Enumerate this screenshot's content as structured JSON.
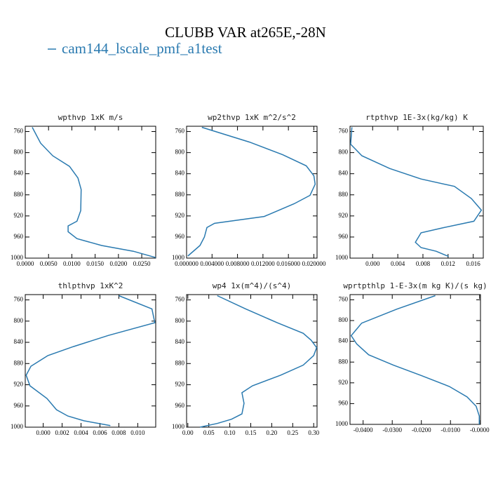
{
  "figure": {
    "title": "CLUBB VAR at265E,-28N",
    "series_name": "cam144_lscale_pmf_a1test",
    "color": "#2a7ab0"
  },
  "chart_data": [
    {
      "type": "line",
      "title": "wpthvp  1xK m/s",
      "levels": [
        752,
        782,
        806,
        826,
        848,
        870,
        910,
        930,
        939,
        950,
        963,
        976,
        987,
        999
      ],
      "values": [
        0.0015,
        0.0033,
        0.0059,
        0.0095,
        0.0113,
        0.012,
        0.0119,
        0.0111,
        0.0092,
        0.0092,
        0.0111,
        0.0164,
        0.0232,
        0.028
      ],
      "xlim": [
        0,
        0.028
      ],
      "ylim": [
        1000,
        750
      ],
      "xticks": [
        {
          "value": 0,
          "label": "0.0000"
        },
        {
          "value": 0.005,
          "label": "0.0050"
        },
        {
          "value": 0.01,
          "label": "0.0100"
        },
        {
          "value": 0.015,
          "label": "0.0150"
        },
        {
          "value": 0.02,
          "label": "0.0200"
        },
        {
          "value": 0.025,
          "label": "0.0250"
        }
      ],
      "yticks": [
        760,
        800,
        840,
        880,
        920,
        960,
        1000
      ]
    },
    {
      "type": "line",
      "title": "wp2thvp  1xK m^2/s^2",
      "levels": [
        752,
        780,
        804,
        825,
        844,
        860,
        881,
        897,
        921,
        934,
        942,
        960,
        976,
        996
      ],
      "values": [
        0.0024,
        0.0099,
        0.0151,
        0.0188,
        0.02,
        0.0202,
        0.0194,
        0.0169,
        0.0122,
        0.0044,
        0.0032,
        0.0028,
        0.0021,
        0.0002
      ],
      "xlim": [
        0,
        0.0205
      ],
      "ylim": [
        1000,
        750
      ],
      "xticks": [
        {
          "value": 0,
          "label": "0.000000"
        },
        {
          "value": 0.004,
          "label": "0.004000"
        },
        {
          "value": 0.008,
          "label": "0.008000"
        },
        {
          "value": 0.012,
          "label": "0.012000"
        },
        {
          "value": 0.016,
          "label": "0.016000"
        },
        {
          "value": 0.02,
          "label": "0.020000"
        }
      ],
      "yticks": [
        760,
        800,
        840,
        880,
        920,
        960,
        1000
      ]
    },
    {
      "type": "line",
      "title": "rtpthvp  1E-3x(kg/kg) K",
      "levels": [
        752,
        784,
        806,
        830,
        850,
        864,
        887,
        909,
        930,
        943,
        952,
        970,
        980,
        987,
        997
      ],
      "values": [
        -0.0033,
        -0.0035,
        -0.0017,
        0.0027,
        0.0077,
        0.013,
        0.0157,
        0.0173,
        0.0161,
        0.011,
        0.0077,
        0.0068,
        0.0077,
        0.0101,
        0.0121
      ],
      "xlim": [
        -0.0036,
        0.0176
      ],
      "ylim": [
        1000,
        750
      ],
      "xticks": [
        {
          "value": 0,
          "label": "0.000"
        },
        {
          "value": 0.004,
          "label": "0.004"
        },
        {
          "value": 0.008,
          "label": "0.008"
        },
        {
          "value": 0.012,
          "label": "0.012"
        },
        {
          "value": 0.016,
          "label": "0.016"
        }
      ],
      "yticks": [
        760,
        800,
        840,
        880,
        920,
        960,
        1000
      ]
    },
    {
      "type": "line",
      "title": "thlpthvp  1xK^2",
      "levels": [
        752,
        777,
        803,
        827,
        848,
        865,
        885,
        902,
        922,
        946,
        967,
        979,
        988,
        997
      ],
      "values": [
        0.008,
        0.0115,
        0.0118,
        0.0069,
        0.0032,
        0.0005,
        -0.0013,
        -0.0018,
        -0.0014,
        0.0004,
        0.0014,
        0.0026,
        0.0043,
        0.0071
      ],
      "xlim": [
        -0.0019,
        0.0119
      ],
      "ylim": [
        1000,
        750
      ],
      "xticks": [
        {
          "value": 0,
          "label": "0.000"
        },
        {
          "value": 0.002,
          "label": "0.002"
        },
        {
          "value": 0.004,
          "label": "0.004"
        },
        {
          "value": 0.006,
          "label": "0.006"
        },
        {
          "value": 0.008,
          "label": "0.008"
        },
        {
          "value": 0.01,
          "label": "0.010"
        }
      ],
      "yticks": [
        760,
        800,
        840,
        880,
        920,
        960,
        1000
      ]
    },
    {
      "type": "line",
      "title": "wp4  1x(m^4)/(s^4)",
      "levels": [
        752,
        777,
        803,
        823,
        836,
        850,
        865,
        883,
        902,
        922,
        935,
        955,
        975,
        985,
        993,
        1000
      ],
      "values": [
        0.07,
        0.138,
        0.213,
        0.275,
        0.294,
        0.307,
        0.3,
        0.275,
        0.221,
        0.154,
        0.129,
        0.134,
        0.129,
        0.104,
        0.07,
        0.029
      ],
      "xlim": [
        -0.003,
        0.308
      ],
      "ylim": [
        1000,
        750
      ],
      "xticks": [
        {
          "value": 0,
          "label": "0.00"
        },
        {
          "value": 0.05,
          "label": "0.05"
        },
        {
          "value": 0.1,
          "label": "0.10"
        },
        {
          "value": 0.15,
          "label": "0.15"
        },
        {
          "value": 0.2,
          "label": "0.20"
        },
        {
          "value": 0.25,
          "label": "0.25"
        },
        {
          "value": 0.3,
          "label": "0.30"
        }
      ],
      "yticks": [
        760,
        800,
        840,
        880,
        920,
        960,
        1000
      ]
    },
    {
      "type": "line",
      "title": "wprtpthlp  1-E-3x(m kg K)/(s kg)",
      "levels": [
        752,
        778,
        805,
        829,
        845,
        866,
        886,
        906,
        927,
        947,
        965,
        984,
        1000
      ],
      "values": [
        -0.0152,
        -0.0284,
        -0.0405,
        -0.0441,
        -0.0422,
        -0.0381,
        -0.0296,
        -0.02,
        -0.0104,
        -0.0043,
        -0.0012,
        -0.0001,
        -0.0001
      ],
      "xlim": [
        -0.0445,
        0.0003
      ],
      "ylim": [
        1000,
        750
      ],
      "xticks": [
        {
          "value": -0.04,
          "label": "-0.0400"
        },
        {
          "value": -0.03,
          "label": "-0.0300"
        },
        {
          "value": -0.02,
          "label": "-0.0200"
        },
        {
          "value": -0.01,
          "label": "-0.0100"
        },
        {
          "value": 0,
          "label": "-0.0000"
        }
      ],
      "yticks": [
        760,
        800,
        840,
        880,
        920,
        960,
        1000
      ]
    }
  ]
}
